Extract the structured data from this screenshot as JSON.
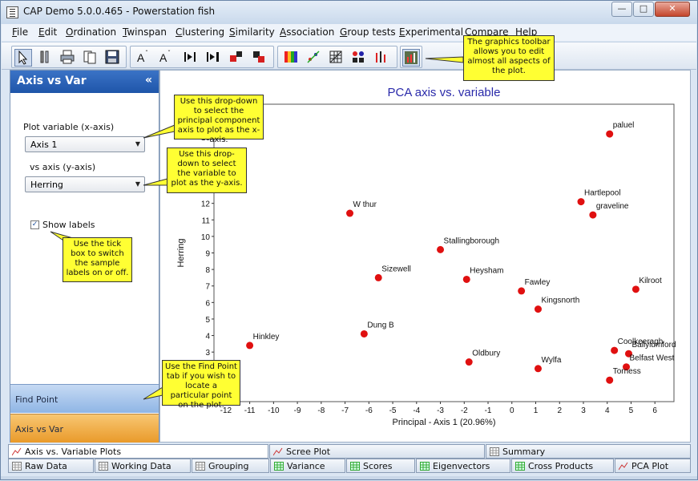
{
  "window": {
    "title": "CAP Demo 5.0.0.465 - Powerstation fish"
  },
  "menu": [
    "File",
    "Edit",
    "Ordination",
    "Twinspan",
    "Clustering",
    "Similarity",
    "Association",
    "Group tests",
    "Experimental",
    "Compare",
    "Help"
  ],
  "toolbar": {
    "icons": [
      "pointer-icon",
      "tools-icon",
      "print-icon",
      "print-preview-icon",
      "save-icon",
      "font-larger-icon",
      "font-smaller-icon",
      "align-left-icon",
      "align-right-icon",
      "color-fill-icon",
      "color-marker-icon",
      "palette-icon",
      "axes-icon",
      "grid-icon",
      "legend-icon",
      "bars-icon",
      "chart-edit-icon"
    ]
  },
  "sidebar": {
    "title": "Axis vs Var",
    "plot_variable_label": "Plot variable  (x-axis)",
    "x_axis_value": "Axis 1",
    "vs_axis_label": "vs  axis (y-axis)",
    "y_axis_value": "Herring",
    "show_labels_label": "Show labels",
    "show_labels_checked": "✓",
    "find_point_tab": "Find Point",
    "axis_vs_var_tab": "Axis vs Var"
  },
  "callouts": {
    "toolbar": "The graphics toolbar allows you to edit almost all aspects of the plot.",
    "xaxis": "Use this drop-down to select the principal component axis to plot as the x-axis.",
    "yaxis": "Use this drop-down to select the variable to plot as the y-axis.",
    "labels": "Use the tick box to switch the sample labels on or off.",
    "find": "Use the Find Point tab if you wish to locate a particular point on the plot."
  },
  "chart_data": {
    "type": "scatter",
    "title": "PCA axis vs. variable",
    "xlabel": "Principal - Axis 1 (20.96%)",
    "ylabel": "Herring",
    "xlim": [
      -12.5,
      6.8
    ],
    "ylim": [
      0,
      18
    ],
    "xticks": [
      -12,
      -11,
      -10,
      -9,
      -8,
      -7,
      -6,
      -5,
      -4,
      -3,
      -2,
      -1,
      0,
      1,
      2,
      3,
      4,
      5,
      6
    ],
    "yticks": [
      1,
      2,
      3,
      4,
      5,
      6,
      7,
      8,
      9,
      10,
      11,
      12,
      13,
      14,
      15,
      16,
      17
    ],
    "point_color": "#e01010",
    "title_color": "#2a2aaa",
    "points": [
      {
        "label": "paluel",
        "x": 4.1,
        "y": 16.2
      },
      {
        "label": "Hartlepool",
        "x": 2.9,
        "y": 12.1
      },
      {
        "label": "graveline",
        "x": 3.4,
        "y": 11.3
      },
      {
        "label": "W thur",
        "x": -6.8,
        "y": 11.4
      },
      {
        "label": "Stallingborough",
        "x": -3.0,
        "y": 9.2
      },
      {
        "label": "Sizewell",
        "x": -5.6,
        "y": 7.5
      },
      {
        "label": "Heysham",
        "x": -1.9,
        "y": 7.4
      },
      {
        "label": "Fawley",
        "x": 0.4,
        "y": 6.7
      },
      {
        "label": "Kilroot",
        "x": 5.2,
        "y": 6.8
      },
      {
        "label": "Kingsnorth",
        "x": 1.1,
        "y": 5.6
      },
      {
        "label": "Dung B",
        "x": -6.2,
        "y": 4.1
      },
      {
        "label": "Hinkley",
        "x": -11.0,
        "y": 3.4
      },
      {
        "label": "Coolkeeragh",
        "x": 4.3,
        "y": 3.1
      },
      {
        "label": "Ballylumford",
        "x": 4.9,
        "y": 2.9
      },
      {
        "label": "Oldbury",
        "x": -1.8,
        "y": 2.4
      },
      {
        "label": "Wylfa",
        "x": 1.1,
        "y": 2.0
      },
      {
        "label": "Belfast West",
        "x": 4.8,
        "y": 2.1
      },
      {
        "label": "Torness",
        "x": 4.1,
        "y": 1.3
      }
    ]
  },
  "tabs_top": [
    "Axis vs. Variable Plots",
    "Scree Plot",
    "Summary"
  ],
  "tabs_bottom": [
    "Raw Data",
    "Working Data",
    "Grouping",
    "Variance",
    "Scores",
    "Eigenvectors",
    "Cross Products",
    "PCA Plot"
  ]
}
